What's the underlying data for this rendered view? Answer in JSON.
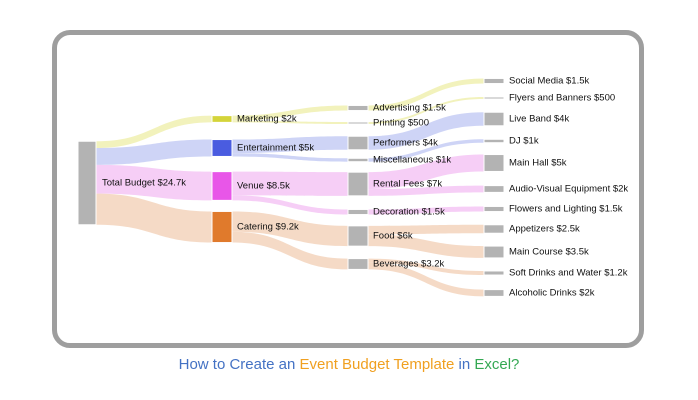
{
  "caption": {
    "part1": "How to Create an ",
    "part2": "Event Budget Template",
    "part3": " in ",
    "part4": "Excel?",
    "colors": {
      "part1": "#4472c4",
      "part2": "#f0a020",
      "part3": "#4472c4",
      "part4": "#34a853"
    }
  },
  "chart_data": {
    "type": "sankey",
    "unit": "USD",
    "nodes": [
      {
        "id": "total",
        "label": "Total Budget $24.7k",
        "value": 24700,
        "level": 0,
        "color": "#b3b3b3"
      },
      {
        "id": "marketing",
        "label": "Marketing $2k",
        "value": 2000,
        "level": 1,
        "color": "#d4d43a"
      },
      {
        "id": "entertainment",
        "label": "Entertainment $5k",
        "value": 5000,
        "level": 1,
        "color": "#4a5ce0"
      },
      {
        "id": "venue",
        "label": "Venue $8.5k",
        "value": 8500,
        "level": 1,
        "color": "#e856e8"
      },
      {
        "id": "catering",
        "label": "Catering $9.2k",
        "value": 9200,
        "level": 1,
        "color": "#e07a2c"
      },
      {
        "id": "advertising",
        "label": "Advertising $1.5k",
        "value": 1500,
        "level": 2,
        "color": "#b3b3b3"
      },
      {
        "id": "printing",
        "label": "Printing $500",
        "value": 500,
        "level": 2,
        "color": "#b3b3b3"
      },
      {
        "id": "performers",
        "label": "Performers $4k",
        "value": 4000,
        "level": 2,
        "color": "#b3b3b3"
      },
      {
        "id": "misc",
        "label": "Miscellaneous $1k",
        "value": 1000,
        "level": 2,
        "color": "#b3b3b3"
      },
      {
        "id": "rental",
        "label": "Rental Fees $7k",
        "value": 7000,
        "level": 2,
        "color": "#b3b3b3"
      },
      {
        "id": "decoration",
        "label": "Decoration $1.5k",
        "value": 1500,
        "level": 2,
        "color": "#b3b3b3"
      },
      {
        "id": "food",
        "label": "Food $6k",
        "value": 6000,
        "level": 2,
        "color": "#b3b3b3"
      },
      {
        "id": "beverages",
        "label": "Beverages $3.2k",
        "value": 3200,
        "level": 2,
        "color": "#b3b3b3"
      },
      {
        "id": "social",
        "label": "Social Media $1.5k",
        "value": 1500,
        "level": 3,
        "color": "#b3b3b3"
      },
      {
        "id": "flyers",
        "label": "Flyers and Banners $500",
        "value": 500,
        "level": 3,
        "color": "#b3b3b3"
      },
      {
        "id": "liveband",
        "label": "Live Band $4k",
        "value": 4000,
        "level": 3,
        "color": "#b3b3b3"
      },
      {
        "id": "dj",
        "label": "DJ $1k",
        "value": 1000,
        "level": 3,
        "color": "#b3b3b3"
      },
      {
        "id": "mainhall",
        "label": "Main Hall $5k",
        "value": 5000,
        "level": 3,
        "color": "#b3b3b3"
      },
      {
        "id": "av",
        "label": "Audio-Visual Equipment $2k",
        "value": 2000,
        "level": 3,
        "color": "#b3b3b3"
      },
      {
        "id": "flowers",
        "label": "Flowers and Lighting $1.5k",
        "value": 1500,
        "level": 3,
        "color": "#b3b3b3"
      },
      {
        "id": "appetizers",
        "label": "Appetizers $2.5k",
        "value": 2500,
        "level": 3,
        "color": "#b3b3b3"
      },
      {
        "id": "maincourse",
        "label": "Main Course $3.5k",
        "value": 3500,
        "level": 3,
        "color": "#b3b3b3"
      },
      {
        "id": "softdrinks",
        "label": "Soft Drinks and Water $1.2k",
        "value": 1200,
        "level": 3,
        "color": "#b3b3b3"
      },
      {
        "id": "alcohol",
        "label": "Alcoholic Drinks $2k",
        "value": 2000,
        "level": 3,
        "color": "#b3b3b3"
      }
    ],
    "links": [
      {
        "source": "total",
        "target": "marketing",
        "value": 2000,
        "color": "#f0f0b0"
      },
      {
        "source": "total",
        "target": "entertainment",
        "value": 5000,
        "color": "#c5ccf5"
      },
      {
        "source": "total",
        "target": "venue",
        "value": 8500,
        "color": "#f5c5f5"
      },
      {
        "source": "total",
        "target": "catering",
        "value": 9200,
        "color": "#f3d3bc"
      },
      {
        "source": "marketing",
        "target": "advertising",
        "value": 1500,
        "color": "#f0f0b0"
      },
      {
        "source": "marketing",
        "target": "printing",
        "value": 500,
        "color": "#f0f0b0"
      },
      {
        "source": "entertainment",
        "target": "performers",
        "value": 4000,
        "color": "#c5ccf5"
      },
      {
        "source": "entertainment",
        "target": "misc",
        "value": 1000,
        "color": "#c5ccf5"
      },
      {
        "source": "venue",
        "target": "rental",
        "value": 7000,
        "color": "#f5c5f5"
      },
      {
        "source": "venue",
        "target": "decoration",
        "value": 1500,
        "color": "#f5c5f5"
      },
      {
        "source": "catering",
        "target": "food",
        "value": 6000,
        "color": "#f3d3bc"
      },
      {
        "source": "catering",
        "target": "beverages",
        "value": 3200,
        "color": "#f3d3bc"
      },
      {
        "source": "advertising",
        "target": "social",
        "value": 1500,
        "color": "#f0f0b0"
      },
      {
        "source": "printing",
        "target": "flyers",
        "value": 500,
        "color": "#f0f0b0"
      },
      {
        "source": "performers",
        "target": "liveband",
        "value": 4000,
        "color": "#c5ccf5"
      },
      {
        "source": "misc",
        "target": "dj",
        "value": 1000,
        "color": "#c5ccf5"
      },
      {
        "source": "rental",
        "target": "mainhall",
        "value": 5000,
        "color": "#f5c5f5"
      },
      {
        "source": "rental",
        "target": "av",
        "value": 2000,
        "color": "#f5c5f5"
      },
      {
        "source": "decoration",
        "target": "flowers",
        "value": 1500,
        "color": "#f5c5f5"
      },
      {
        "source": "food",
        "target": "appetizers",
        "value": 2500,
        "color": "#f3d3bc"
      },
      {
        "source": "food",
        "target": "maincourse",
        "value": 3500,
        "color": "#f3d3bc"
      },
      {
        "source": "beverages",
        "target": "softdrinks",
        "value": 1200,
        "color": "#f3d3bc"
      },
      {
        "source": "beverages",
        "target": "alcohol",
        "value": 2000,
        "color": "#f3d3bc"
      }
    ]
  }
}
